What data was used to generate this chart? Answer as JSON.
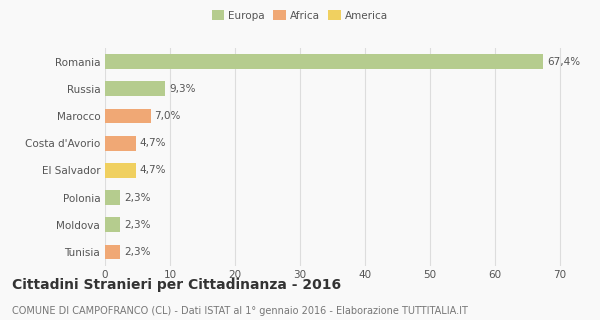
{
  "categories": [
    "Romania",
    "Russia",
    "Marocco",
    "Costa d'Avorio",
    "El Salvador",
    "Polonia",
    "Moldova",
    "Tunisia"
  ],
  "values": [
    67.4,
    9.3,
    7.0,
    4.7,
    4.7,
    2.3,
    2.3,
    2.3
  ],
  "labels": [
    "67,4%",
    "9,3%",
    "7,0%",
    "4,7%",
    "4,7%",
    "2,3%",
    "2,3%",
    "2,3%"
  ],
  "colors": [
    "#b5cc8e",
    "#b5cc8e",
    "#f0a875",
    "#f0a875",
    "#f0d060",
    "#b5cc8e",
    "#b5cc8e",
    "#f0a875"
  ],
  "legend_labels": [
    "Europa",
    "Africa",
    "America"
  ],
  "legend_colors": [
    "#b5cc8e",
    "#f0a875",
    "#f0d060"
  ],
  "title": "Cittadini Stranieri per Cittadinanza - 2016",
  "subtitle": "COMUNE DI CAMPOFRANCO (CL) - Dati ISTAT al 1° gennaio 2016 - Elaborazione TUTTITALIA.IT",
  "xlim": [
    0,
    72
  ],
  "xticks": [
    0,
    10,
    20,
    30,
    40,
    50,
    60,
    70
  ],
  "background_color": "#f9f9f9",
  "grid_color": "#dddddd",
  "bar_height": 0.55,
  "label_fontsize": 7.5,
  "tick_fontsize": 7.5,
  "title_fontsize": 10,
  "subtitle_fontsize": 7
}
